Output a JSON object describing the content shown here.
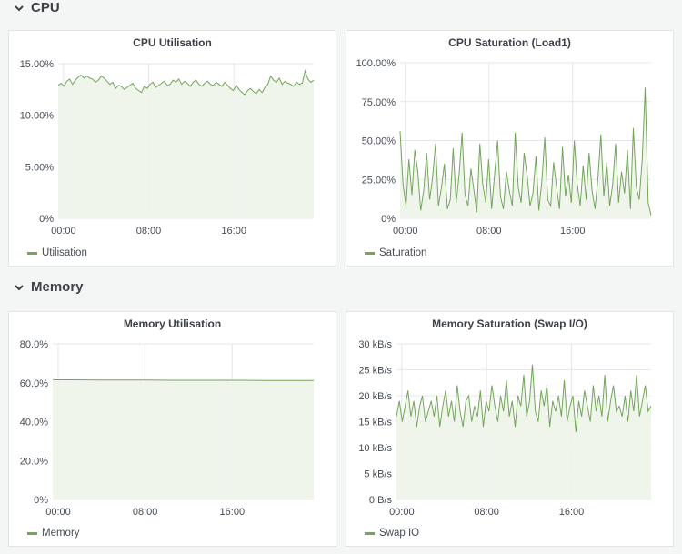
{
  "rows": [
    {
      "title": "CPU",
      "icon": "chevron-down-icon"
    },
    {
      "title": "Memory",
      "icon": "chevron-down-icon"
    }
  ],
  "colors": {
    "series": "#73a65a",
    "fill": "#eef4ea",
    "grid": "#e6e7e8",
    "axis_text": "#464c54"
  },
  "panels": [
    {
      "title": "CPU Utilisation",
      "legend": "Utilisation",
      "chart_data": {
        "type": "area",
        "title": "CPU Utilisation",
        "xlabel": "",
        "ylabel": "",
        "x_ticks": [
          "00:00",
          "08:00",
          "16:00"
        ],
        "y_ticks": [
          "0%",
          "5.00%",
          "10.00%",
          "15.00%"
        ],
        "ylim": [
          0,
          15
        ],
        "x_range_hours": [
          -0.5,
          23.5
        ],
        "series": [
          {
            "name": "Utilisation",
            "values": [
              12.9,
              13.1,
              12.8,
              13.3,
              13.5,
              13.0,
              13.4,
              13.7,
              13.9,
              13.6,
              13.8,
              13.6,
              13.5,
              13.2,
              13.4,
              13.8,
              13.6,
              13.3,
              13.0,
              13.2,
              12.6,
              12.9,
              12.8,
              12.5,
              12.7,
              12.9,
              13.1,
              12.6,
              12.4,
              12.2,
              12.8,
              12.6,
              13.0,
              13.2,
              12.7,
              12.9,
              13.1,
              13.3,
              12.9,
              13.0,
              13.4,
              13.2,
              13.5,
              13.0,
              13.3,
              13.1,
              12.8,
              13.2,
              13.4,
              13.0,
              12.8,
              13.1,
              13.3,
              13.0,
              12.9,
              13.2,
              13.0,
              12.8,
              13.2,
              12.9,
              12.6,
              12.4,
              12.9,
              12.5,
              12.2,
              12.0,
              12.4,
              12.6,
              12.3,
              12.1,
              12.5,
              12.2,
              12.7,
              13.0,
              13.8,
              13.4,
              13.2,
              13.6,
              13.0,
              13.3,
              13.1,
              13.0,
              12.8,
              13.2,
              13.0,
              13.1,
              14.3,
              13.5,
              13.2,
              13.4
            ]
          }
        ]
      }
    },
    {
      "title": "CPU Saturation (Load1)",
      "legend": "Saturation",
      "chart_data": {
        "type": "line",
        "title": "CPU Saturation (Load1)",
        "xlabel": "",
        "ylabel": "",
        "x_ticks": [
          "00:00",
          "08:00",
          "16:00"
        ],
        "y_ticks": [
          "0%",
          "25.00%",
          "50.00%",
          "75.00%",
          "100.00%"
        ],
        "ylim": [
          0,
          100
        ],
        "x_range_hours": [
          -0.5,
          23.5
        ],
        "series": [
          {
            "name": "Saturation",
            "values": [
              56,
              22,
              8,
              38,
              15,
              44,
              30,
              5,
              18,
              42,
              12,
              26,
              48,
              8,
              20,
              35,
              6,
              12,
              45,
              10,
              28,
              55,
              15,
              8,
              32,
              18,
              4,
              48,
              22,
              10,
              38,
              6,
              28,
              50,
              14,
              6,
              30,
              18,
              8,
              55,
              20,
              10,
              42,
              28,
              8,
              16,
              40,
              5,
              24,
              52,
              12,
              8,
              36,
              20,
              6,
              46,
              14,
              28,
              10,
              50,
              22,
              8,
              34,
              12,
              42,
              18,
              6,
              26,
              54,
              14,
              36,
              8,
              22,
              48,
              10,
              30,
              16,
              44,
              6,
              58,
              20,
              12,
              38,
              84,
              10,
              2
            ]
          }
        ]
      }
    },
    {
      "title": "Memory Utilisation",
      "legend": "Memory",
      "chart_data": {
        "type": "area",
        "title": "Memory Utilisation",
        "xlabel": "",
        "ylabel": "",
        "x_ticks": [
          "00:00",
          "08:00",
          "16:00"
        ],
        "y_ticks": [
          "0%",
          "20.0%",
          "40.0%",
          "60.0%",
          "80.0%"
        ],
        "ylim": [
          0,
          80
        ],
        "x_range_hours": [
          -0.5,
          23.5
        ],
        "series": [
          {
            "name": "Memory",
            "values": [
              61.5,
              61.5,
              61.4,
              61.4,
              61.4,
              61.3,
              61.3,
              61.3,
              61.3,
              61.2,
              61.2,
              61.2
            ]
          }
        ]
      }
    },
    {
      "title": "Memory Saturation (Swap I/O)",
      "legend": "Swap IO",
      "chart_data": {
        "type": "area",
        "title": "Memory Saturation (Swap I/O)",
        "xlabel": "",
        "ylabel": "",
        "x_ticks": [
          "00:00",
          "08:00",
          "16:00"
        ],
        "y_ticks": [
          "0 B/s",
          "5 kB/s",
          "10 kB/s",
          "15 kB/s",
          "20 kB/s",
          "25 kB/s",
          "30 kB/s"
        ],
        "ylim": [
          0,
          30
        ],
        "x_range_hours": [
          -0.5,
          23.5
        ],
        "series": [
          {
            "name": "Swap IO",
            "values": [
              16,
              19,
              15,
              18,
              21,
              16,
              19,
              14,
              18,
              20,
              15,
              17,
              19,
              16,
              20,
              14,
              18,
              21,
              16,
              19,
              15,
              22,
              17,
              14,
              19,
              20,
              15,
              18,
              16,
              21,
              14,
              19,
              17,
              22,
              18,
              15,
              20,
              17,
              23,
              16,
              19,
              14,
              20,
              18,
              24,
              16,
              19,
              26,
              17,
              15,
              21,
              18,
              22,
              14,
              19,
              17,
              20,
              16,
              23,
              15,
              18,
              20,
              13,
              19,
              16,
              21,
              18,
              15,
              22,
              17,
              20,
              16,
              24,
              15,
              19,
              22,
              17,
              18,
              16,
              20,
              15,
              21,
              17,
              24,
              16,
              19,
              22,
              17,
              18
            ]
          }
        ]
      }
    }
  ]
}
